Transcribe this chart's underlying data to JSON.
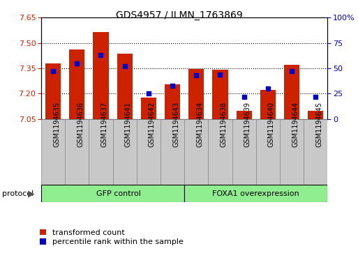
{
  "title": "GDS4957 / ILMN_1763869",
  "samples": [
    "GSM1194635",
    "GSM1194636",
    "GSM1194637",
    "GSM1194641",
    "GSM1194642",
    "GSM1194643",
    "GSM1194634",
    "GSM1194638",
    "GSM1194639",
    "GSM1194640",
    "GSM1194644",
    "GSM1194645"
  ],
  "transformed_counts": [
    7.38,
    7.46,
    7.565,
    7.435,
    7.175,
    7.255,
    7.345,
    7.34,
    7.1,
    7.22,
    7.37,
    7.1
  ],
  "percentile_ranks": [
    47,
    55,
    63,
    52,
    25,
    33,
    43,
    44,
    22,
    30,
    47,
    22
  ],
  "group_boundary": 6,
  "group_labels": [
    "GFP control",
    "FOXA1 overexpression"
  ],
  "group_color": "#90ee90",
  "ylim_left": [
    7.05,
    7.65
  ],
  "ylim_right": [
    0,
    100
  ],
  "yticks_left": [
    7.05,
    7.2,
    7.35,
    7.5,
    7.65
  ],
  "yticks_right": [
    0,
    25,
    50,
    75,
    100
  ],
  "ytick_labels_right": [
    "0",
    "25",
    "50",
    "75",
    "100%"
  ],
  "grid_lines": [
    7.2,
    7.35,
    7.5
  ],
  "bar_color": "#cc2200",
  "dot_color": "#0000cc",
  "bar_width": 0.65,
  "dot_size": 22,
  "ylabel_left_color": "#cc2200",
  "ylabel_right_color": "#0000cc",
  "legend_bar_label": "transformed count",
  "legend_dot_label": "percentile rank within the sample",
  "tick_box_color": "#c8c8c8",
  "tick_box_edge_color": "#888888",
  "protocol_label": "protocol",
  "title_fontsize": 10,
  "tick_fontsize": 7,
  "legend_fontsize": 8
}
